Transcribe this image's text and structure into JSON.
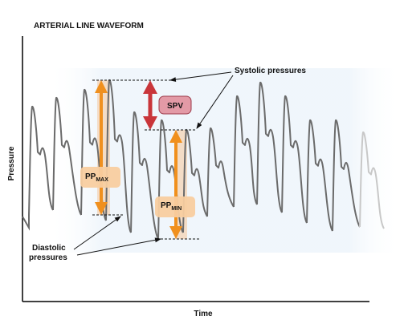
{
  "title": "ARTERIAL LINE WAVEFORM",
  "axes": {
    "y_label": "Pressure",
    "x_label": "Time"
  },
  "annotations": {
    "systolic": "Systolic pressures",
    "diastolic_line1": "Diastolic",
    "diastolic_line2": "pressures",
    "spv": "SPV",
    "pp_max_main": "PP",
    "pp_max_sub": "MAX",
    "pp_min_main": "PP",
    "pp_min_sub": "MIN"
  },
  "colors": {
    "waveform": "#6b6b6b",
    "waveform_fade": "#c8c8c8",
    "orange_arrow": "#f0901e",
    "orange_band": "#f6c79a",
    "orange_box": "#f8cda0",
    "red_arrow": "#c9353a",
    "spv_box": "#e39aa6",
    "bg_panel": "#f3f8fc",
    "axis": "#000000"
  },
  "icons": {
    "up_down_arrow": "double-headed-arrow"
  }
}
